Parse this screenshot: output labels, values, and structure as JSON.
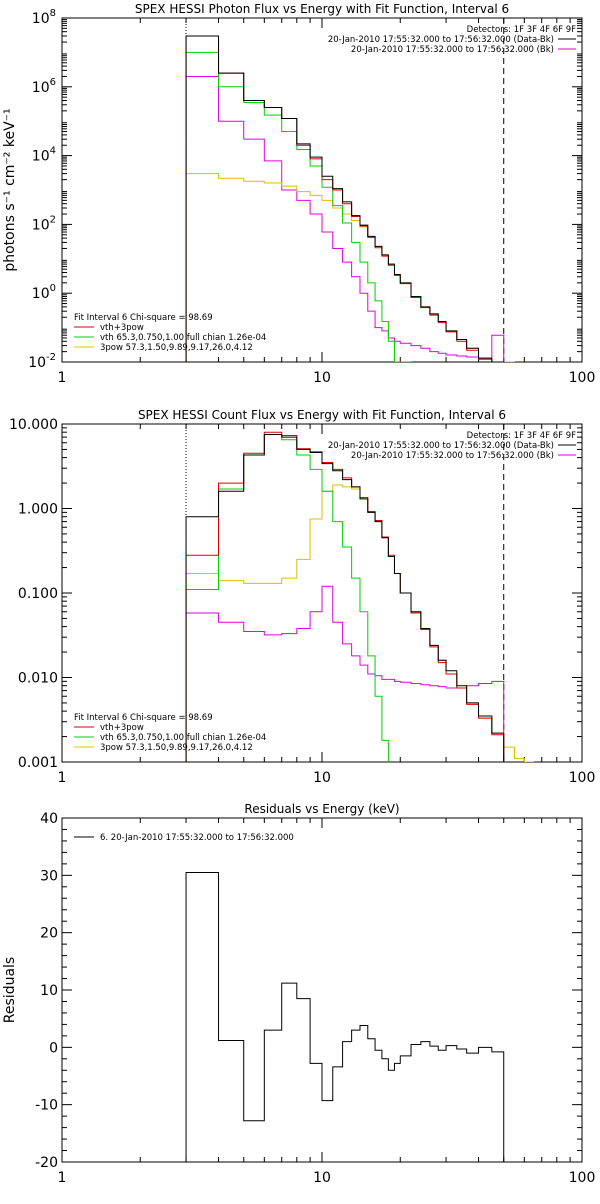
{
  "chart_data": [
    {
      "type": "line",
      "title": "SPEX HESSI Photon Flux vs Energy with Fit Function, Interval 6",
      "xlabel": "",
      "ylabel": "photons s⁻¹ cm⁻² keV⁻¹",
      "xscale": "log",
      "yscale": "log",
      "xlim": [
        1,
        100
      ],
      "ylim": [
        0.01,
        100000000
      ],
      "x_ticks": [
        {
          "v": 1,
          "label": "1"
        },
        {
          "v": 10,
          "label": "10"
        },
        {
          "v": 100,
          "label": "100"
        }
      ],
      "y_ticks": [
        {
          "v": 0.01,
          "base": "10",
          "exp": "-2"
        },
        {
          "v": 1,
          "base": "10",
          "exp": "0"
        },
        {
          "v": 100,
          "base": "10",
          "exp": "2"
        },
        {
          "v": 10000,
          "base": "10",
          "exp": "4"
        },
        {
          "v": 1000000,
          "base": "10",
          "exp": "6"
        },
        {
          "v": 100000000,
          "base": "10",
          "exp": "8"
        }
      ],
      "vlines": [
        {
          "x": 3,
          "style": "dotted"
        },
        {
          "x": 50,
          "style": "dashed"
        }
      ],
      "legend_right": {
        "position": "top-right",
        "header": "Detectors: 1F 3F 4F 6F 9F",
        "entries": [
          {
            "label": "20-Jan-2010 17:55:32.000 to 17:56:32.000 (Data-Bk)",
            "color": "#000000"
          },
          {
            "label": "20-Jan-2010 17:55:32.000 to 17:56:32.000 (Bk)",
            "color": "#e000e0"
          }
        ]
      },
      "legend_left": {
        "position": "bottom-left",
        "header": "Fit Interval 6    Chi-square = 98.69",
        "entries": [
          {
            "label": "vth+3pow",
            "color": "#e00000"
          },
          {
            "label": "vth 65.3,0.750,1.00  full chian 1.26e-04",
            "color": "#00d000"
          },
          {
            "label": "3pow 57.3,1.50,9.89,9.17,26.0,4.12",
            "color": "#d8c000"
          }
        ]
      },
      "bin_edges": [
        3,
        4,
        5,
        6,
        7,
        8,
        9,
        10,
        11,
        12,
        13,
        14,
        15,
        16,
        17,
        18,
        19,
        20,
        22,
        24,
        26,
        28,
        30,
        33,
        36,
        40,
        45,
        50,
        55
      ],
      "series": [
        {
          "name": "",
          "color": "#000000",
          "values": [
            30000000,
            2500000,
            400000,
            250000,
            120000,
            22000,
            9000,
            2500,
            1100,
            450,
            180,
            95,
            45,
            23,
            13,
            7,
            3.5,
            2,
            0.8,
            0.4,
            0.25,
            0.15,
            0.08,
            0.045,
            0.025,
            0.013,
            0.006,
            null
          ]
        },
        {
          "name": "",
          "color": "#e00000",
          "values": [
            30000000,
            2500000,
            400000,
            250000,
            120000,
            20000,
            8000,
            2000,
            1000,
            400,
            170,
            90,
            42,
            21,
            12,
            6.5,
            3.3,
            1.9,
            0.75,
            0.38,
            0.23,
            0.14,
            0.075,
            0.04,
            0.022,
            0.012,
            0.0055,
            null
          ]
        },
        {
          "name": "",
          "color": "#00d000",
          "values": [
            10000000,
            1000000,
            350000,
            150000,
            50000,
            15000,
            5000,
            1200,
            350,
            110,
            30,
            8,
            2,
            0.6,
            0.15,
            0.04,
            0.01,
            0.002,
            null,
            null,
            null,
            null,
            null,
            null,
            null,
            null,
            null,
            null
          ]
        },
        {
          "name": "",
          "color": "#d8c000",
          "values": [
            3000,
            2200,
            1800,
            1600,
            1300,
            900,
            700,
            500,
            300,
            200,
            130,
            85,
            45,
            23,
            13,
            7,
            3.5,
            2,
            0.8,
            0.4,
            0.25,
            0.15,
            0.08,
            0.045,
            0.025,
            0.013,
            0.006,
            0.0035
          ]
        },
        {
          "name": "",
          "color": "#e000e0",
          "values": [
            2000000,
            100000,
            30000,
            7000,
            1000,
            500,
            200,
            60,
            20,
            8,
            3,
            1,
            0.3,
            0.1,
            0.08,
            0.05,
            0.04,
            0.035,
            0.03,
            0.025,
            0.02,
            0.018,
            0.016,
            0.015,
            0.014,
            0.013,
            0.06,
            null
          ]
        }
      ]
    },
    {
      "type": "line",
      "title": "SPEX HESSI Count Flux vs Energy with Fit Function, Interval 6",
      "xlabel": "",
      "ylabel": "",
      "xscale": "log",
      "yscale": "log",
      "xlim": [
        1,
        100
      ],
      "ylim": [
        0.001,
        10
      ],
      "x_ticks": [
        {
          "v": 1,
          "label": "1"
        },
        {
          "v": 10,
          "label": "10"
        },
        {
          "v": 100,
          "label": "100"
        }
      ],
      "y_ticks": [
        {
          "v": 0.001,
          "label": "0.001"
        },
        {
          "v": 0.01,
          "label": "0.010"
        },
        {
          "v": 0.1,
          "label": "0.100"
        },
        {
          "v": 1,
          "label": "1.000"
        },
        {
          "v": 10,
          "label": "10.000"
        }
      ],
      "vlines": [
        {
          "x": 3,
          "style": "dotted"
        },
        {
          "x": 50,
          "style": "dashed"
        }
      ],
      "legend_right": {
        "position": "top-right",
        "header": "Detectors: 1F 3F 4F 6F 9F",
        "entries": [
          {
            "label": "20-Jan-2010 17:55:32.000 to 17:56:32.000 (Data-Bk)",
            "color": "#000000"
          },
          {
            "label": "20-Jan-2010 17:55:32.000 to 17:56:32.000 (Bk)",
            "color": "#e000e0"
          }
        ]
      },
      "legend_left": {
        "position": "bottom-left",
        "header": "Fit Interval 6    Chi-square = 98.69",
        "entries": [
          {
            "label": "vth+3pow",
            "color": "#e00000"
          },
          {
            "label": "vth 65.3,0.750,1.00  full chian 1.26e-04",
            "color": "#00d000"
          },
          {
            "label": "3pow 57.3,1.50,9.89,9.17,26.0,4.12",
            "color": "#d8c000"
          }
        ]
      },
      "bin_edges": [
        3,
        4,
        5,
        6,
        7,
        8,
        9,
        10,
        11,
        12,
        13,
        14,
        15,
        16,
        17,
        18,
        19,
        20,
        22,
        24,
        26,
        28,
        30,
        33,
        36,
        40,
        45,
        50,
        55,
        60,
        65
      ],
      "series": [
        {
          "name": "",
          "color": "#000000",
          "values": [
            0.8,
            1.6,
            4.3,
            7.5,
            7.0,
            5.0,
            4.6,
            3.4,
            2.8,
            2.2,
            1.8,
            1.3,
            0.9,
            0.7,
            0.45,
            0.27,
            0.17,
            0.1,
            0.06,
            0.038,
            0.024,
            0.016,
            0.012,
            0.008,
            0.005,
            0.0035,
            0.0022,
            null,
            null,
            null
          ]
        },
        {
          "name": "",
          "color": "#e00000",
          "values": [
            0.28,
            2.0,
            4.5,
            8.0,
            7.3,
            5.1,
            4.7,
            3.5,
            2.9,
            2.3,
            1.8,
            1.35,
            0.92,
            0.72,
            0.46,
            0.28,
            0.17,
            0.1,
            0.058,
            0.037,
            0.023,
            0.015,
            0.011,
            0.0075,
            0.0048,
            0.0033,
            0.0021,
            null,
            null,
            null
          ]
        },
        {
          "name": "",
          "color": "#00d000",
          "values": [
            0.11,
            1.7,
            4.3,
            7.5,
            6.5,
            4.3,
            2.9,
            1.6,
            0.7,
            0.35,
            0.15,
            0.06,
            0.018,
            0.006,
            0.0018,
            null,
            null,
            null,
            null,
            null,
            null,
            null,
            null,
            null,
            null,
            null,
            null,
            null,
            null,
            null
          ]
        },
        {
          "name": "",
          "color": "#d8c000",
          "values": [
            0.17,
            0.14,
            0.13,
            0.13,
            0.15,
            0.25,
            0.75,
            1.6,
            1.9,
            1.8,
            1.7,
            1.3,
            0.9,
            0.7,
            0.45,
            0.27,
            0.17,
            0.1,
            0.06,
            0.038,
            0.024,
            0.016,
            0.011,
            0.0075,
            0.005,
            0.0033,
            0.0022,
            0.0015,
            0.0011,
            0.0008
          ]
        },
        {
          "name": "",
          "color": "#e000e0",
          "values": [
            0.058,
            0.045,
            0.035,
            0.032,
            0.033,
            0.038,
            0.06,
            0.12,
            0.045,
            0.025,
            0.018,
            0.014,
            0.011,
            0.0105,
            0.0095,
            0.0095,
            0.009,
            0.0088,
            0.0085,
            0.0082,
            0.008,
            0.0078,
            0.0075,
            0.0075,
            0.008,
            0.0085,
            0.009,
            null,
            null,
            null
          ]
        }
      ]
    },
    {
      "type": "line",
      "title": "Residuals vs Energy (keV)",
      "xlabel": "",
      "ylabel": "Residuals",
      "xscale": "log",
      "yscale": "linear",
      "xlim": [
        1,
        100
      ],
      "ylim": [
        -20,
        40
      ],
      "x_ticks": [
        {
          "v": 1,
          "label": "1"
        },
        {
          "v": 10,
          "label": "10"
        },
        {
          "v": 100,
          "label": "100"
        }
      ],
      "y_ticks": [
        {
          "v": -20,
          "label": "-20"
        },
        {
          "v": -10,
          "label": "-10"
        },
        {
          "v": 0,
          "label": "0"
        },
        {
          "v": 10,
          "label": "10"
        },
        {
          "v": 20,
          "label": "20"
        },
        {
          "v": 30,
          "label": "30"
        },
        {
          "v": 40,
          "label": "40"
        }
      ],
      "legend_left": {
        "position": "top-left",
        "header": "",
        "entries": [
          {
            "label": "6. 20-Jan-2010 17:55:32.000 to 17:56:32.000",
            "color": "#000000"
          }
        ]
      },
      "bin_edges": [
        3,
        4,
        5,
        6,
        7,
        8,
        9,
        10,
        11,
        12,
        13,
        14,
        15,
        16,
        17,
        18,
        19,
        20,
        22,
        24,
        26,
        28,
        30,
        33,
        36,
        40,
        45,
        50
      ],
      "series": [
        {
          "name": "",
          "color": "#000000",
          "values": [
            30.5,
            1.2,
            -12.8,
            3.0,
            11.2,
            8.5,
            -2.8,
            -9.3,
            -3.4,
            1.0,
            3.0,
            3.8,
            1.5,
            -0.5,
            -2.0,
            -4.0,
            -2.8,
            -1.5,
            0.5,
            1.0,
            0.2,
            -0.5,
            0.3,
            -0.3,
            -1.0,
            0.0,
            -0.8
          ]
        }
      ]
    }
  ]
}
